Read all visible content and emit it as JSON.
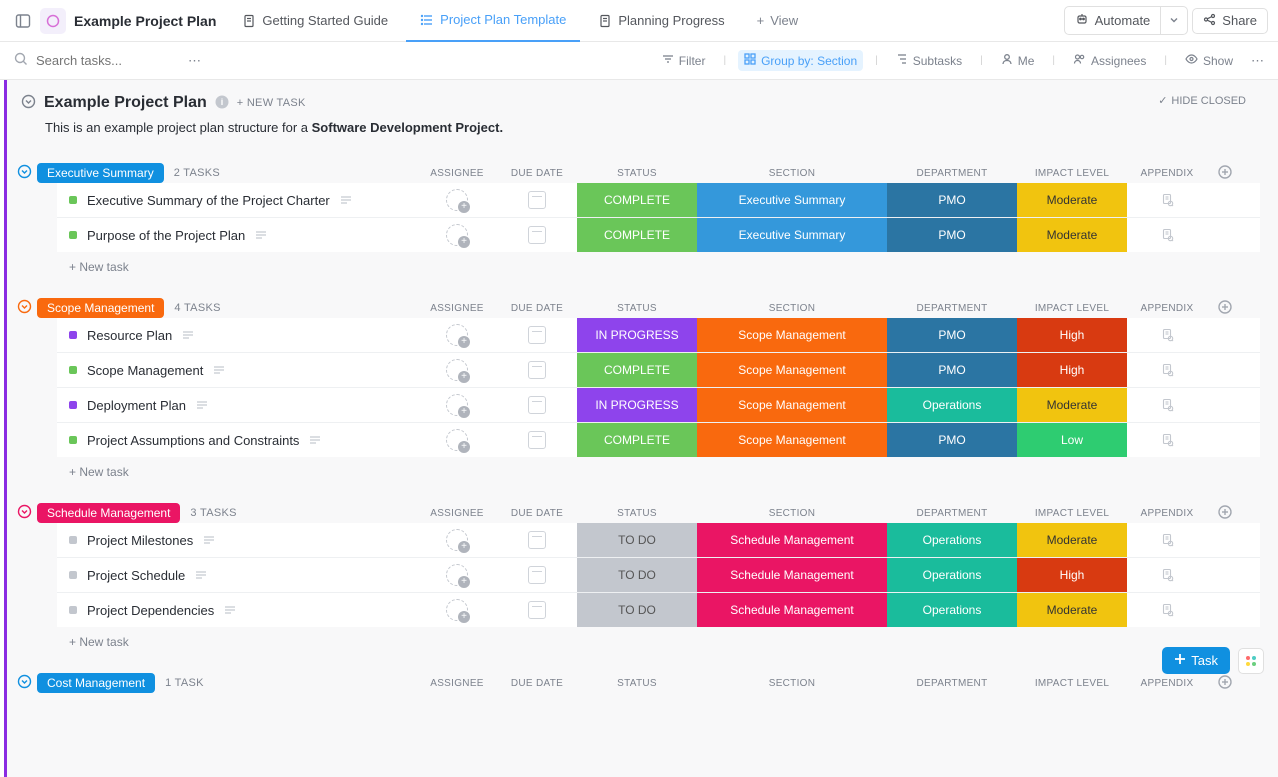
{
  "nav": {
    "project_title": "Example Project Plan",
    "tabs": [
      {
        "label": "Getting Started Guide",
        "active": false
      },
      {
        "label": "Project Plan Template",
        "active": true
      },
      {
        "label": "Planning Progress",
        "active": false
      }
    ],
    "view_label": "View",
    "automate": "Automate",
    "share": "Share"
  },
  "toolbar": {
    "search_placeholder": "Search tasks...",
    "filter": "Filter",
    "group_by": "Group by: Section",
    "subtasks": "Subtasks",
    "me": "Me",
    "assignees": "Assignees",
    "show": "Show"
  },
  "project": {
    "title": "Example Project Plan",
    "new_task": "+ NEW TASK",
    "hide_closed": "HIDE CLOSED",
    "desc_prefix": "This is an example project plan structure for a ",
    "desc_bold": "Software Development Project."
  },
  "columns": {
    "assignee": "ASSIGNEE",
    "due_date": "DUE DATE",
    "status": "STATUS",
    "section": "SECTION",
    "department": "DEPARTMENT",
    "impact": "IMPACT LEVEL",
    "appendix": "APPENDIX"
  },
  "colors": {
    "badge_exec": "#1090e0",
    "badge_scope": "#f9690e",
    "badge_schedule": "#ea1564",
    "badge_cost": "#1090e0",
    "toggle_exec": "#1090e0",
    "toggle_scope": "#f9690e",
    "toggle_schedule": "#ea1564",
    "status_complete": "#6ac659",
    "status_inprogress": "#8e44ec",
    "status_todo": "#c3c7ce",
    "section_exec": "#3498db",
    "section_scope": "#f9690e",
    "section_schedule": "#ea1564",
    "dept_pmo": "#2b75a3",
    "dept_ops": "#1abc9c",
    "impact_moderate": "#f1c40f",
    "impact_high": "#d83a11",
    "impact_low": "#2ecc71",
    "sq_green": "#6ac659",
    "sq_purple": "#8e44ec",
    "sq_grey": "#c3c7ce"
  },
  "sections": [
    {
      "name": "Executive Summary",
      "badge_color": "badge_exec",
      "toggle_color": "toggle_exec",
      "count": "2 TASKS",
      "tasks": [
        {
          "name": "Executive Summary of the Project Charter",
          "sq": "sq_green",
          "status": "COMPLETE",
          "status_bg": "status_complete",
          "section": "Executive Summary",
          "section_bg": "section_exec",
          "dept": "PMO",
          "dept_bg": "dept_pmo",
          "impact": "Moderate",
          "impact_bg": "impact_moderate",
          "impact_fg": "#333"
        },
        {
          "name": "Purpose of the Project Plan",
          "sq": "sq_green",
          "status": "COMPLETE",
          "status_bg": "status_complete",
          "section": "Executive Summary",
          "section_bg": "section_exec",
          "dept": "PMO",
          "dept_bg": "dept_pmo",
          "impact": "Moderate",
          "impact_bg": "impact_moderate",
          "impact_fg": "#333"
        }
      ]
    },
    {
      "name": "Scope Management",
      "badge_color": "badge_scope",
      "toggle_color": "toggle_scope",
      "count": "4 TASKS",
      "tasks": [
        {
          "name": "Resource Plan",
          "sq": "sq_purple",
          "status": "IN PROGRESS",
          "status_bg": "status_inprogress",
          "section": "Scope Management",
          "section_bg": "section_scope",
          "dept": "PMO",
          "dept_bg": "dept_pmo",
          "impact": "High",
          "impact_bg": "impact_high",
          "impact_fg": "#fff"
        },
        {
          "name": "Scope Management",
          "sq": "sq_green",
          "status": "COMPLETE",
          "status_bg": "status_complete",
          "section": "Scope Management",
          "section_bg": "section_scope",
          "dept": "PMO",
          "dept_bg": "dept_pmo",
          "impact": "High",
          "impact_bg": "impact_high",
          "impact_fg": "#fff"
        },
        {
          "name": "Deployment Plan",
          "sq": "sq_purple",
          "status": "IN PROGRESS",
          "status_bg": "status_inprogress",
          "section": "Scope Management",
          "section_bg": "section_scope",
          "dept": "Operations",
          "dept_bg": "dept_ops",
          "impact": "Moderate",
          "impact_bg": "impact_moderate",
          "impact_fg": "#333"
        },
        {
          "name": "Project Assumptions and Constraints",
          "sq": "sq_green",
          "status": "COMPLETE",
          "status_bg": "status_complete",
          "section": "Scope Management",
          "section_bg": "section_scope",
          "dept": "PMO",
          "dept_bg": "dept_pmo",
          "impact": "Low",
          "impact_bg": "impact_low",
          "impact_fg": "#fff"
        }
      ]
    },
    {
      "name": "Schedule Management",
      "badge_color": "badge_schedule",
      "toggle_color": "toggle_schedule",
      "count": "3 TASKS",
      "tasks": [
        {
          "name": "Project Milestones",
          "sq": "sq_grey",
          "status": "TO DO",
          "status_bg": "status_todo",
          "status_fg": "#555",
          "section": "Schedule Management",
          "section_bg": "section_schedule",
          "dept": "Operations",
          "dept_bg": "dept_ops",
          "impact": "Moderate",
          "impact_bg": "impact_moderate",
          "impact_fg": "#333"
        },
        {
          "name": "Project Schedule",
          "sq": "sq_grey",
          "status": "TO DO",
          "status_bg": "status_todo",
          "status_fg": "#555",
          "section": "Schedule Management",
          "section_bg": "section_schedule",
          "dept": "Operations",
          "dept_bg": "dept_ops",
          "impact": "High",
          "impact_bg": "impact_high",
          "impact_fg": "#fff"
        },
        {
          "name": "Project Dependencies",
          "sq": "sq_grey",
          "status": "TO DO",
          "status_bg": "status_todo",
          "status_fg": "#555",
          "section": "Schedule Management",
          "section_bg": "section_schedule",
          "dept": "Operations",
          "dept_bg": "dept_ops",
          "impact": "Moderate",
          "impact_bg": "impact_moderate",
          "impact_fg": "#333"
        }
      ]
    },
    {
      "name": "Cost Management",
      "badge_color": "badge_cost",
      "toggle_color": "toggle_exec",
      "count": "1 TASK",
      "tasks": []
    }
  ],
  "labels": {
    "new_task_row": "+ New task",
    "float_task": "Task"
  }
}
